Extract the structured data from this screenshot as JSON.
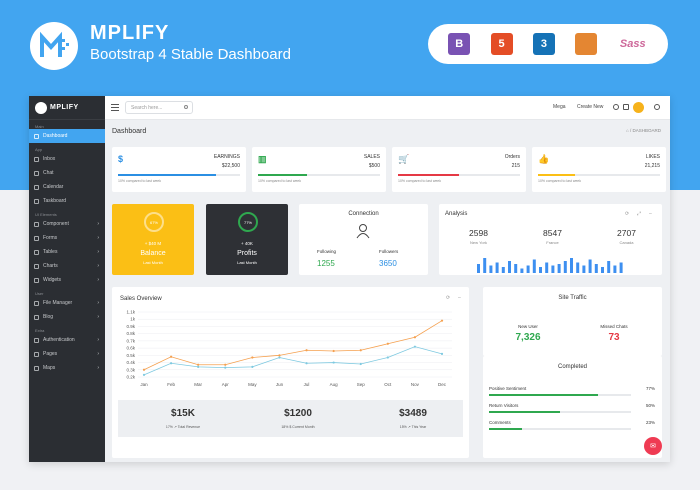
{
  "hero": {
    "title": "MPLIFY",
    "subtitle": "Bootstrap 4 Stable Dashboard",
    "badges": [
      {
        "name": "bootstrap",
        "label": "B",
        "color": "#7952b3"
      },
      {
        "name": "html5",
        "label": "5",
        "color": "#e44d26"
      },
      {
        "name": "css3",
        "label": "3",
        "color": "#1572b6"
      },
      {
        "name": "grunt",
        "label": "",
        "color": "#e48632"
      },
      {
        "name": "sass",
        "label": "Sass",
        "color": "#cd6799"
      }
    ]
  },
  "sidebar": {
    "brand": "MPLIFY",
    "sections": [
      {
        "title": "Main",
        "items": [
          {
            "label": "Dashboard",
            "active": true,
            "arrow": false
          }
        ]
      },
      {
        "title": "App",
        "items": [
          {
            "label": "Inbox",
            "arrow": false
          },
          {
            "label": "Chat",
            "arrow": false
          },
          {
            "label": "Calendar",
            "arrow": false
          },
          {
            "label": "Taskboard",
            "arrow": false
          }
        ]
      },
      {
        "title": "UI Elements",
        "items": [
          {
            "label": "Component",
            "arrow": true
          },
          {
            "label": "Forms",
            "arrow": true
          },
          {
            "label": "Tables",
            "arrow": true
          },
          {
            "label": "Charts",
            "arrow": true
          },
          {
            "label": "Widgets",
            "arrow": true
          }
        ]
      },
      {
        "title": "User",
        "items": [
          {
            "label": "File Manager",
            "arrow": true
          },
          {
            "label": "Blog",
            "arrow": true
          }
        ]
      },
      {
        "title": "Extra",
        "items": [
          {
            "label": "Authentication",
            "arrow": true
          },
          {
            "label": "Pages",
            "arrow": true
          },
          {
            "label": "Maps",
            "arrow": true
          }
        ]
      }
    ]
  },
  "topbar": {
    "search_placeholder": "Search here...",
    "mega": "Mega",
    "create_new": "Create New"
  },
  "page": {
    "title": "Dashboard",
    "breadcrumb": "/ DASHBOARD"
  },
  "stats": [
    {
      "icon": "$",
      "icon_color": "#2b8fe3",
      "label": "EARNINGS",
      "value": "$22,500",
      "bar_color": "#2b8fe3",
      "fill": 0.8,
      "note": "10% compared to last week"
    },
    {
      "icon": "▥",
      "icon_color": "#2fa84f",
      "label": "SALES",
      "value": "$500",
      "bar_color": "#2fa84f",
      "fill": 0.4,
      "note": "10% compared to last week"
    },
    {
      "icon": "🛒",
      "icon_color": "#e53945",
      "label": "Orders",
      "value": "215",
      "bar_color": "#e53945",
      "fill": 0.5,
      "note": "10% compared to last week"
    },
    {
      "icon": "👍",
      "icon_color": "#fbbf15",
      "label": "LIKES",
      "value": "21,215",
      "bar_color": "#fbbf15",
      "fill": 0.3,
      "note": "10% compared to last week"
    }
  ],
  "balance": {
    "ring": "67%",
    "amount": "+ $40 M",
    "title": "Balance",
    "sub": "Last Month",
    "level": 0.67
  },
  "profits": {
    "ring": "77%",
    "amount": "+ 40K",
    "title": "Profits",
    "sub": "Last Month",
    "level": 0.77
  },
  "connection": {
    "title": "Connection",
    "following_label": "Following",
    "following": "1255",
    "followers_label": "Followers",
    "followers": "3650"
  },
  "analysis": {
    "title": "Analysis",
    "metrics": [
      {
        "value": "2598",
        "label": "New York"
      },
      {
        "value": "8547",
        "label": "France"
      },
      {
        "value": "2707",
        "label": "Canada"
      }
    ],
    "bars": [
      0.6,
      1.0,
      0.5,
      0.7,
      0.4,
      0.8,
      0.6,
      0.3,
      0.5,
      0.9,
      0.4,
      0.7,
      0.5,
      0.6,
      0.8,
      1.0,
      0.7,
      0.5,
      0.9,
      0.6,
      0.4,
      0.8,
      0.5,
      0.7
    ]
  },
  "chart_data": {
    "type": "line",
    "title": "Sales Overview",
    "categories": [
      "Jan",
      "Feb",
      "Mar",
      "Apr",
      "May",
      "Jun",
      "Jul",
      "Aug",
      "Sep",
      "Oct",
      "Nov",
      "Dec"
    ],
    "y_ticks": [
      "1.1k",
      "1k",
      "0.9k",
      "0.8k",
      "0.7k",
      "0.6k",
      "0.5k",
      "0.4k",
      "0.3k",
      "0.2k"
    ],
    "ylim": [
      0.2,
      1.1
    ],
    "series": [
      {
        "color": "#f5a04f",
        "values": [
          0.3,
          0.48,
          0.37,
          0.37,
          0.47,
          0.5,
          0.57,
          0.56,
          0.57,
          0.66,
          0.75,
          0.98
        ]
      },
      {
        "color": "#7ec9e0",
        "values": [
          0.23,
          0.39,
          0.34,
          0.33,
          0.34,
          0.47,
          0.39,
          0.4,
          0.38,
          0.47,
          0.62,
          0.52
        ]
      }
    ]
  },
  "sales_summary": [
    {
      "value": "$15K",
      "label": "17% ↗ Total Revenue"
    },
    {
      "value": "$1200",
      "label": "18% $ Current Month"
    },
    {
      "value": "$3489",
      "label": "15% ↗ This Year"
    }
  ],
  "site_traffic": {
    "title": "Site Traffic",
    "new_user_label": "New User",
    "new_user": "7,326",
    "new_user_color": "#2fa84f",
    "missed_label": "Missed Chats",
    "missed": "73",
    "missed_color": "#e53945"
  },
  "completed": {
    "title": "Completed",
    "items": [
      {
        "label": "Positive Sentiment",
        "value": "77%",
        "fill": 0.77
      },
      {
        "label": "Return Visitors",
        "value": "50%",
        "fill": 0.5
      },
      {
        "label": "Comments",
        "value": "23%",
        "fill": 0.23
      }
    ]
  }
}
